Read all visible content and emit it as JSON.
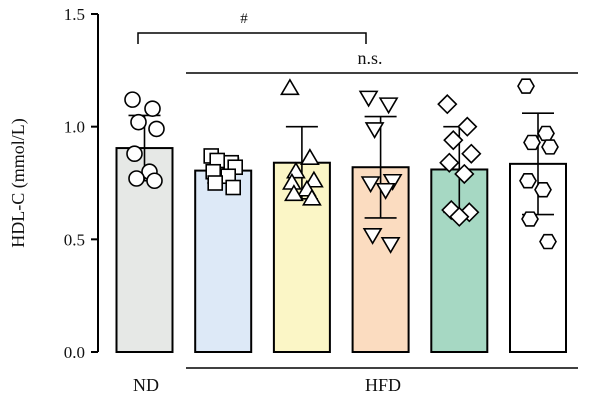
{
  "chart_data": {
    "type": "bar",
    "ylabel": "HDL-C (mmol/L)",
    "ylim": [
      0,
      1.5
    ],
    "yticks": [
      "0.0",
      "0.5",
      "1.0",
      "1.5"
    ],
    "group_labels": {
      "nd": "ND",
      "hfd": "HFD"
    },
    "annotations": {
      "hash": "#",
      "ns": "n.s."
    },
    "bars": [
      {
        "fill": "#e6e8e6",
        "marker": "circle",
        "mean": 0.905,
        "sd": 0.145,
        "points": [
          1.12,
          1.08,
          1.02,
          0.99,
          0.88,
          0.8,
          0.77,
          0.76
        ]
      },
      {
        "fill": "#dde9f7",
        "marker": "square",
        "mean": 0.805,
        "sd": 0.055,
        "points": [
          0.87,
          0.84,
          0.85,
          0.82,
          0.8,
          0.78,
          0.75,
          0.73
        ]
      },
      {
        "fill": "#fbf6c6",
        "marker": "triangle",
        "mean": 0.84,
        "sd": 0.16,
        "points": [
          1.17,
          0.86,
          0.8,
          0.76,
          0.75,
          0.72,
          0.7,
          0.68
        ]
      },
      {
        "fill": "#fbdcc0",
        "marker": "invtri",
        "mean": 0.82,
        "sd": 0.225,
        "points": [
          1.13,
          1.1,
          0.99,
          0.76,
          0.75,
          0.72,
          0.52,
          0.48
        ]
      },
      {
        "fill": "#a6d8c3",
        "marker": "diamond",
        "mean": 0.81,
        "sd": 0.19,
        "points": [
          1.1,
          1.0,
          0.94,
          0.88,
          0.84,
          0.79,
          0.63,
          0.62,
          0.6
        ]
      },
      {
        "fill": "#ffffff",
        "marker": "hexagon",
        "mean": 0.835,
        "sd": 0.225,
        "points": [
          1.18,
          0.97,
          0.93,
          0.91,
          0.76,
          0.72,
          0.59,
          0.49
        ]
      }
    ]
  }
}
